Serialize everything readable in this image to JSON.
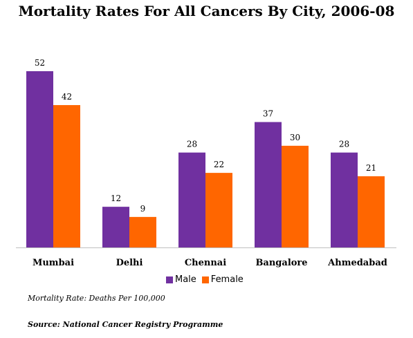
{
  "chart_data": {
    "type": "bar",
    "title": "Mortality Rates For All Cancers By City, 2006-08",
    "categories": [
      "Mumbai",
      "Delhi",
      "Chennai",
      "Bangalore",
      "Ahmedabad"
    ],
    "series": [
      {
        "name": "Male",
        "values": [
          52,
          12,
          28,
          37,
          28
        ],
        "color": "#7030a0"
      },
      {
        "name": "Female",
        "values": [
          42,
          9,
          22,
          30,
          21
        ],
        "color": "#ff6600"
      }
    ],
    "ylim": [
      0,
      52
    ],
    "grid": false,
    "legend_position": "bottom"
  },
  "note": "Mortality Rate: Deaths Per 100,000",
  "source": "Source: National Cancer Registry Programme"
}
